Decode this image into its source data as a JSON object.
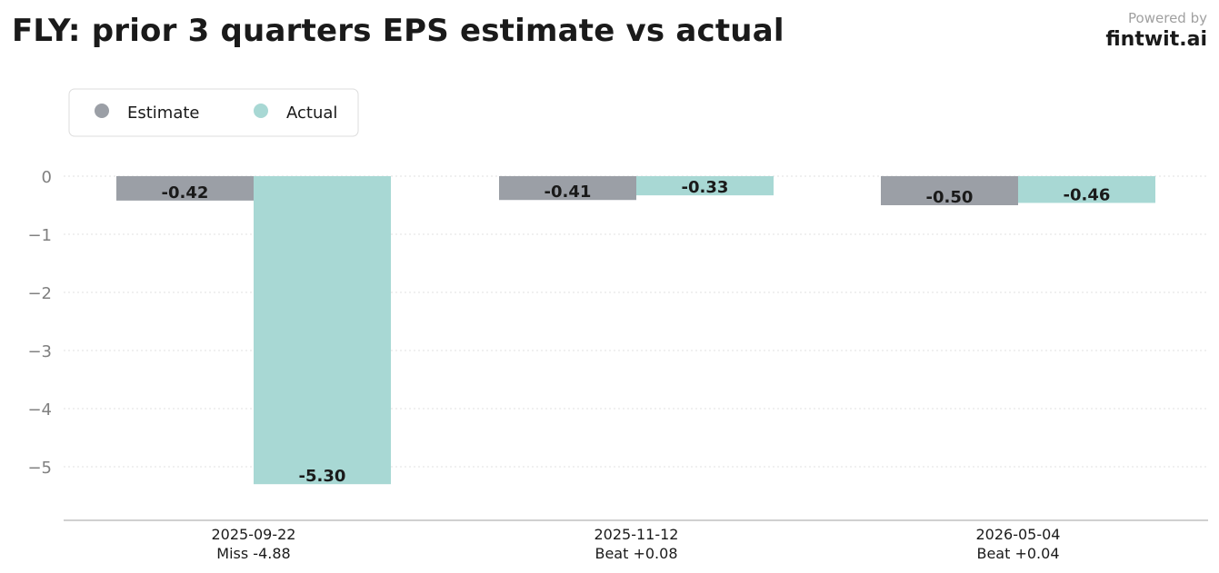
{
  "header": {
    "title": "FLY: prior 3 quarters EPS estimate vs actual",
    "powered_by": "Powered by",
    "brand": "fintwit.ai"
  },
  "chart_data": {
    "type": "bar",
    "title": "FLY: prior 3 quarters EPS estimate vs actual",
    "categories": [
      "2025-09-22",
      "2025-11-12",
      "2026-05-04"
    ],
    "category_sublabels": [
      "Miss -4.88",
      "Beat +0.08",
      "Beat +0.04"
    ],
    "series": [
      {
        "name": "Estimate",
        "values": [
          -0.42,
          -0.41,
          -0.5
        ],
        "labels": [
          "-0.42",
          "-0.41",
          "-0.50"
        ],
        "color": "#9b9fa6"
      },
      {
        "name": "Actual",
        "values": [
          -5.3,
          -0.33,
          -0.46
        ],
        "labels": [
          "-5.30",
          "-0.33",
          "-0.46"
        ],
        "color": "#a8d8d4"
      }
    ],
    "yticks": [
      0,
      -1,
      -2,
      -3,
      -4,
      -5
    ],
    "ytick_labels": [
      "0",
      "−1",
      "−2",
      "−3",
      "−4",
      "−5"
    ],
    "ylim": [
      -5.9,
      0
    ],
    "grid": true,
    "legend_position": "top-left",
    "xlabel": "",
    "ylabel": ""
  }
}
